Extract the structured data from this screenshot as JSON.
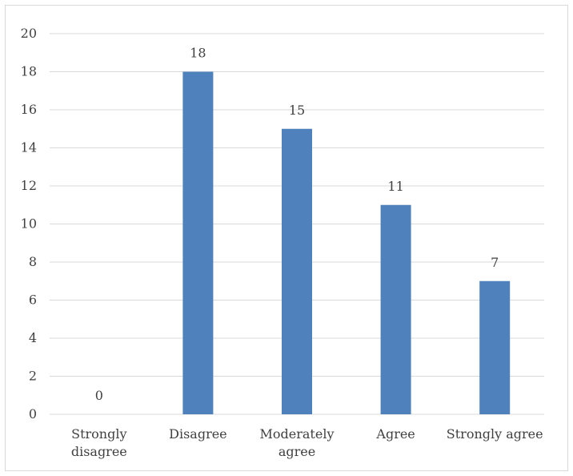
{
  "chart_data": {
    "type": "bar",
    "title": "",
    "xlabel": "",
    "ylabel": "",
    "categories": [
      [
        "Strongly",
        "disagree"
      ],
      [
        "Disagree"
      ],
      [
        "Moderately",
        "agree"
      ],
      [
        "Agree"
      ],
      [
        "Strongly agree"
      ]
    ],
    "values": [
      0,
      18,
      15,
      11,
      7
    ],
    "data_labels": [
      "0",
      "18",
      "15",
      "11",
      "7"
    ],
    "ylim": [
      0,
      20
    ],
    "yticks": [
      0,
      2,
      4,
      6,
      8,
      10,
      12,
      14,
      16,
      18,
      20
    ],
    "grid": true,
    "legend": "none",
    "colors": {
      "bar": "#4f81bd",
      "grid": "#d9d9d9",
      "text": "#404040"
    }
  }
}
